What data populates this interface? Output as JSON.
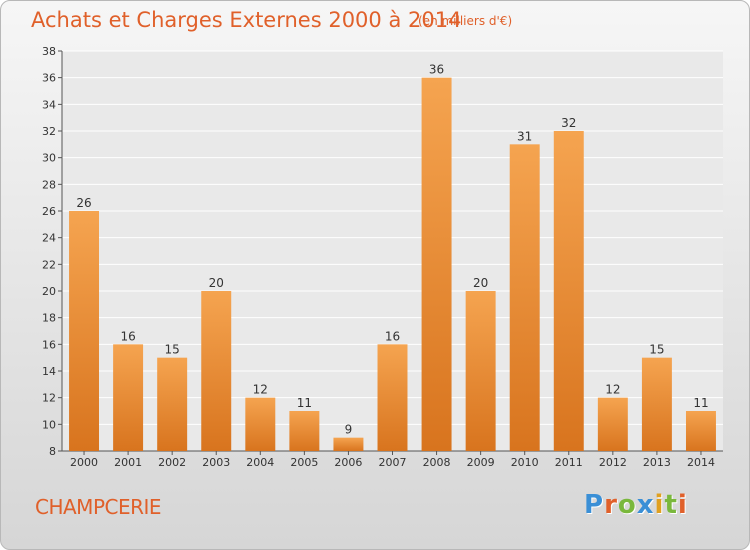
{
  "chart_data": {
    "type": "bar",
    "title": "Achats et Charges Externes 2000 à 2014",
    "subtitle": "(en milliers d'€)",
    "categories": [
      "2000",
      "2001",
      "2002",
      "2003",
      "2004",
      "2005",
      "2006",
      "2007",
      "2008",
      "2009",
      "2010",
      "2011",
      "2012",
      "2013",
      "2014"
    ],
    "values": [
      26,
      16,
      15,
      20,
      12,
      11,
      9,
      16,
      36,
      20,
      31,
      32,
      12,
      15,
      11
    ],
    "ylim": [
      8,
      38
    ],
    "yticks": [
      8,
      10,
      12,
      14,
      16,
      18,
      20,
      22,
      24,
      26,
      28,
      30,
      32,
      34,
      36,
      38
    ],
    "grid": true,
    "bar_color_top": "#f5a450",
    "bar_color_bottom": "#d8741e"
  },
  "footer": {
    "commune": "CHAMPCERIE",
    "logo": "Proxiti"
  },
  "colors": {
    "accent": "#e0602a",
    "logo_letters": [
      "#3a8fd6",
      "#e0602a",
      "#7ab83c",
      "#3a8fd6",
      "#e0a020",
      "#7ab83c",
      "#e0602a"
    ]
  }
}
